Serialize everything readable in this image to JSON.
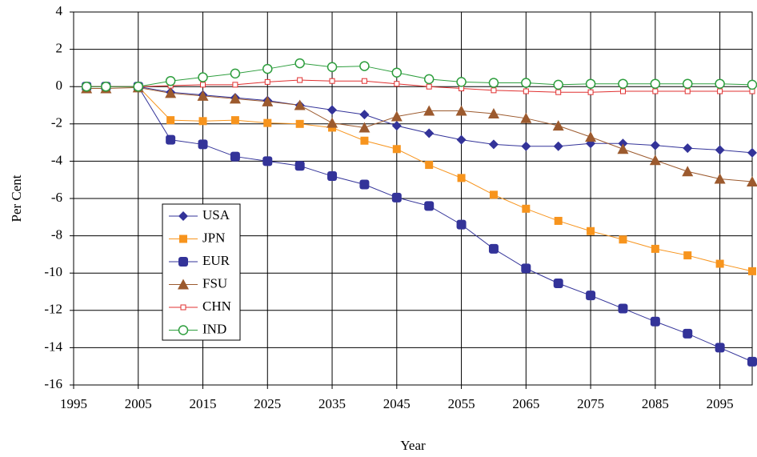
{
  "chart_data": {
    "type": "line",
    "x_label": "Year",
    "y_label": "Per Cent",
    "x": [
      1997,
      2000,
      2005,
      2010,
      2015,
      2020,
      2025,
      2030,
      2035,
      2040,
      2045,
      2050,
      2055,
      2060,
      2065,
      2070,
      2075,
      2080,
      2085,
      2090,
      2095,
      2100
    ],
    "xlim": [
      1995,
      2100
    ],
    "xticks": [
      1995,
      2005,
      2015,
      2025,
      2035,
      2045,
      2055,
      2065,
      2075,
      2085,
      2095
    ],
    "ylim": [
      -16,
      4
    ],
    "yticks": [
      -16,
      -14,
      -12,
      -10,
      -8,
      -6,
      -4,
      -2,
      0,
      2,
      4
    ],
    "grid": true,
    "series": [
      {
        "name": "USA",
        "color": "#333399",
        "marker": "diamond",
        "values": [
          0,
          0,
          0,
          -0.3,
          -0.45,
          -0.6,
          -0.75,
          -1.0,
          -1.25,
          -1.5,
          -2.1,
          -2.5,
          -2.85,
          -3.1,
          -3.2,
          -3.2,
          -3.05,
          -3.05,
          -3.15,
          -3.3,
          -3.4,
          -3.55
        ]
      },
      {
        "name": "JPN",
        "color": "#f7941d",
        "marker": "square",
        "values": [
          0,
          0,
          0,
          -1.8,
          -1.85,
          -1.8,
          -1.95,
          -2.0,
          -2.2,
          -2.9,
          -3.35,
          -4.2,
          -4.9,
          -5.8,
          -6.55,
          -7.2,
          -7.75,
          -8.2,
          -8.7,
          -9.05,
          -9.5,
          -9.9
        ]
      },
      {
        "name": "EUR",
        "color": "#333399",
        "marker": "round-square",
        "values": [
          0,
          0,
          0,
          -2.85,
          -3.1,
          -3.75,
          -4.0,
          -4.25,
          -4.8,
          -5.25,
          -5.95,
          -6.4,
          -7.4,
          -8.7,
          -9.75,
          -10.55,
          -11.2,
          -11.9,
          -12.6,
          -13.25,
          -14.0,
          -14.75
        ]
      },
      {
        "name": "FSU",
        "color": "#9c5a2e",
        "marker": "triangle",
        "values": [
          -0.1,
          -0.1,
          -0.05,
          -0.35,
          -0.5,
          -0.65,
          -0.8,
          -1.0,
          -1.95,
          -2.2,
          -1.6,
          -1.3,
          -1.3,
          -1.45,
          -1.7,
          -2.1,
          -2.7,
          -3.35,
          -3.95,
          -4.55,
          -4.95,
          -5.1
        ]
      },
      {
        "name": "CHN",
        "color": "#e03030",
        "marker": "open-square",
        "values": [
          0,
          0,
          0,
          0.05,
          0.1,
          0.1,
          0.25,
          0.35,
          0.3,
          0.3,
          0.15,
          0.0,
          -0.1,
          -0.2,
          -0.25,
          -0.3,
          -0.3,
          -0.25,
          -0.25,
          -0.25,
          -0.25,
          -0.25
        ]
      },
      {
        "name": "IND",
        "color": "#2e9e3e",
        "marker": "open-circle",
        "values": [
          0,
          0,
          0,
          0.3,
          0.5,
          0.7,
          0.95,
          1.25,
          1.05,
          1.1,
          0.75,
          0.4,
          0.25,
          0.2,
          0.2,
          0.1,
          0.15,
          0.15,
          0.15,
          0.15,
          0.15,
          0.1
        ]
      }
    ]
  }
}
